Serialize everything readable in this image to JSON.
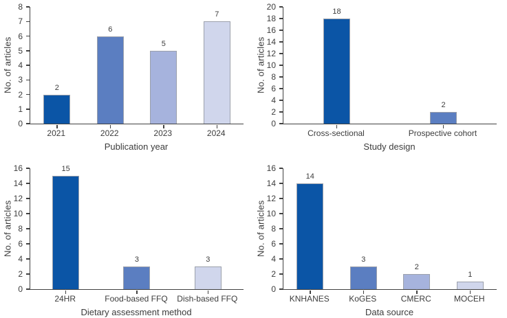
{
  "figure": {
    "description": "Four bar charts summarizing articles by publication year, study design, dietary assessment method, and data source",
    "background": "#ffffff",
    "axis_color": "#404040",
    "text_color": "#3c3c3c",
    "palette": [
      "#0b55a6",
      "#5b7ec1",
      "#a6b3dd",
      "#d0d6ec"
    ]
  },
  "chart_data": [
    {
      "type": "bar",
      "id": "publication-year",
      "categories": [
        "2021",
        "2022",
        "2023",
        "2024"
      ],
      "values": [
        2,
        6,
        5,
        7
      ],
      "xlabel": "Publication year",
      "ylabel": "No. of articles",
      "ylim": [
        0,
        8
      ],
      "ystep": 1,
      "grid": false,
      "value_labels": [
        2,
        6,
        5,
        7
      ],
      "bar_colors": [
        "#0b55a6",
        "#5b7ec1",
        "#a6b3dd",
        "#d0d6ec"
      ]
    },
    {
      "type": "bar",
      "id": "study-design",
      "categories": [
        "Cross-sectional",
        "Prospective cohort"
      ],
      "values": [
        18,
        2
      ],
      "xlabel": "Study design",
      "ylabel": "No. of articles",
      "ylim": [
        0,
        20
      ],
      "ystep": 2,
      "grid": false,
      "value_labels": [
        18,
        2
      ],
      "bar_colors": [
        "#0b55a6",
        "#5b7ec1"
      ]
    },
    {
      "type": "bar",
      "id": "dietary-assessment-method",
      "categories": [
        "24HR",
        "Food-based FFQ",
        "Dish-based FFQ"
      ],
      "values": [
        15,
        3,
        3
      ],
      "xlabel": "Dietary assessment method",
      "ylabel": "No. of articles",
      "ylim": [
        0,
        16
      ],
      "ystep": 2,
      "grid": false,
      "value_labels": [
        15,
        3,
        3
      ],
      "bar_colors": [
        "#0b55a6",
        "#5b7ec1",
        "#d0d6ec"
      ]
    },
    {
      "type": "bar",
      "id": "data-source",
      "categories": [
        "KNHANES",
        "KoGES",
        "CMERC",
        "MOCEH"
      ],
      "values": [
        14,
        3,
        2,
        1
      ],
      "xlabel": "Data source",
      "ylabel": "No. of articles",
      "ylim": [
        0,
        16
      ],
      "ystep": 2,
      "grid": false,
      "value_labels": [
        14,
        3,
        2,
        1
      ],
      "bar_colors": [
        "#0b55a6",
        "#5b7ec1",
        "#a6b3dd",
        "#d0d6ec"
      ]
    }
  ]
}
